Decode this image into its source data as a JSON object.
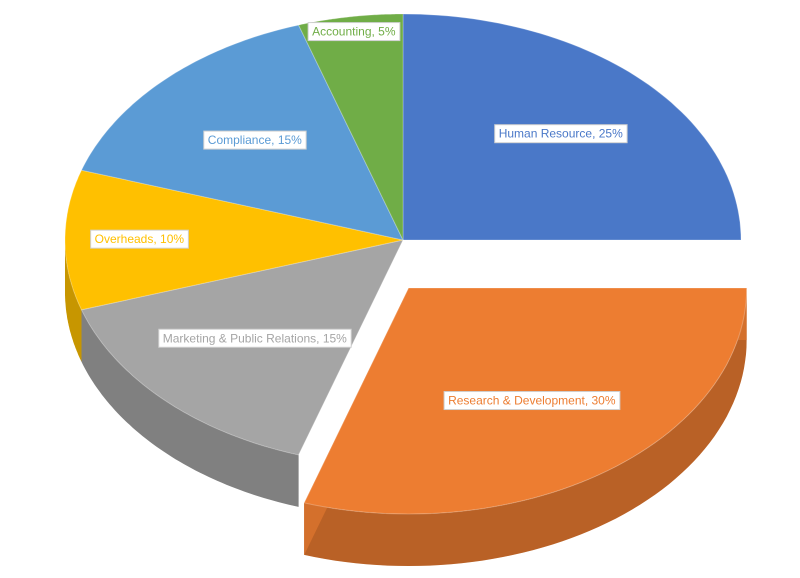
{
  "chart_data": {
    "type": "pie3d",
    "values": [
      25,
      30,
      15,
      10,
      15,
      5
    ],
    "value_labels": [
      "Human Resource, 25%",
      "Research & Development, 30%",
      "Marketing & Public Relations, 15%",
      "Overheads, 10%",
      "Compliance, 15%",
      "Accounting, 5%"
    ],
    "colors": [
      "#4a78c8",
      "#ed7d31",
      "#a5a5a5",
      "#ffc000",
      "#5b9bd5",
      "#70ad47"
    ],
    "exploded": [
      1
    ]
  }
}
